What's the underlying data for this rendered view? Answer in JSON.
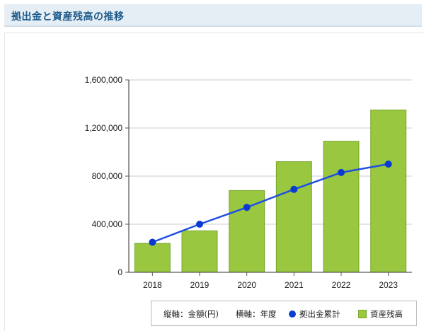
{
  "header": {
    "title": "拠出金と資産残高の推移"
  },
  "legend": {
    "vertical_axis": "縦軸：金額(円)",
    "horizontal_axis": "横軸：年度",
    "contributions": "拠出金累計",
    "balance": "資産残高"
  },
  "colors": {
    "bar": "#99c840",
    "bar_border": "#78a52e",
    "line": "#1f4fe0",
    "point": "#0a3ad0",
    "header_text": "#1d5a8a"
  },
  "chart_data": {
    "type": "bar",
    "categories": [
      "2018",
      "2019",
      "2020",
      "2021",
      "2022",
      "2023"
    ],
    "series": [
      {
        "name": "資産残高",
        "type": "bar",
        "values": [
          240000,
          345000,
          680000,
          920000,
          1090000,
          1350000
        ]
      },
      {
        "name": "拠出金累計",
        "type": "line",
        "values": [
          250000,
          400000,
          540000,
          690000,
          830000,
          900000
        ]
      }
    ],
    "ylim": [
      0,
      1600000
    ],
    "yticks": [
      0,
      400000,
      800000,
      1200000,
      1600000
    ],
    "ytick_labels": [
      "0",
      "400,000",
      "800,000",
      "1,200,000",
      "1,600,000"
    ],
    "grid": true,
    "legend_position": "bottom-right"
  }
}
